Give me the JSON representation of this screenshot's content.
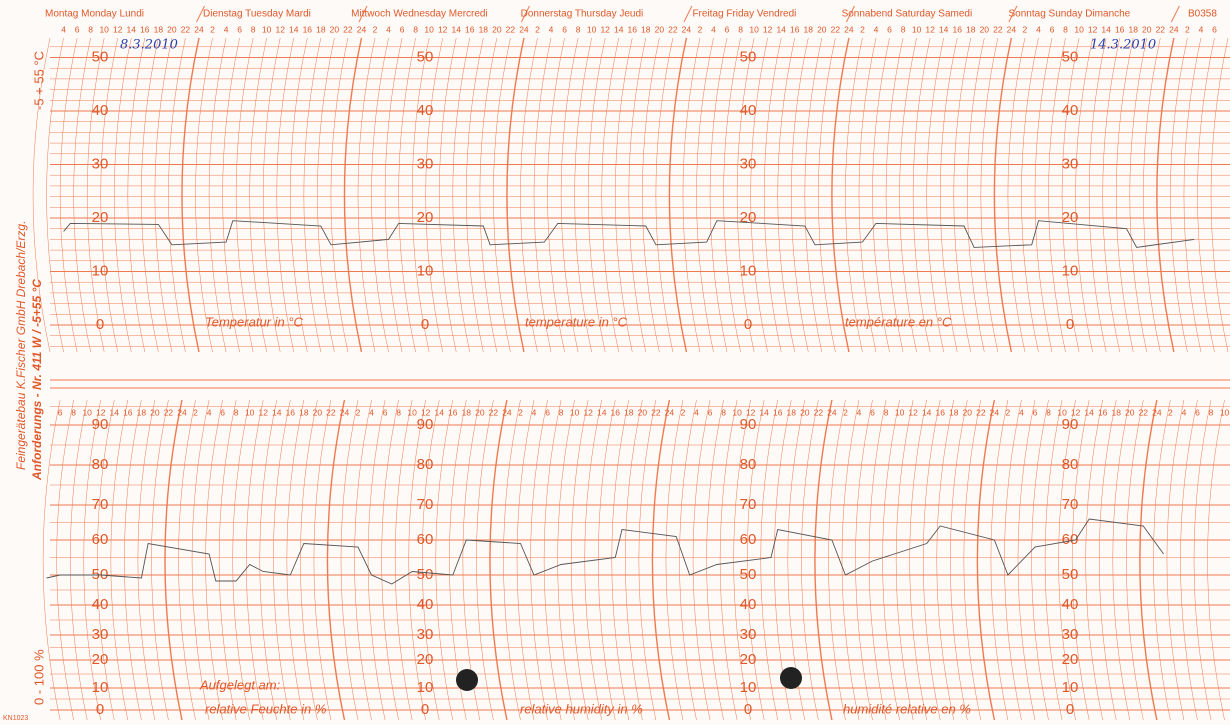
{
  "header": {
    "days": [
      "Montag  Monday  Lundi",
      "Dienstag  Tuesday  Mardi",
      "Mittwoch Wednesday Mercredi",
      "Donnerstag Thursday Jeudi",
      "Freitag  Friday  Vendredi",
      "Sonnabend Saturday Samedi",
      "Sonntag Sunday Dimanche"
    ],
    "code": "B0358",
    "hours": [
      2,
      4,
      6,
      8,
      10,
      12,
      14,
      16,
      18,
      20,
      22,
      24
    ]
  },
  "dates": [
    "8.3.2010",
    "14.3.2010"
  ],
  "side": {
    "maker": "Feingerätebau K.Fischer GmbH Drebach/Erzg.",
    "order": "Anforderungs - Nr. 411 W / -5+55 °C",
    "temp_range": "-5 + 55 °C",
    "hum_range": "0 - 100 %"
  },
  "temperature": {
    "scale": [
      0,
      10,
      20,
      30,
      40,
      50
    ],
    "labels": [
      "Temperatur in °C",
      "temperature in °C",
      "température en °C"
    ],
    "trace": {
      "hours": [
        4,
        5,
        18,
        20,
        28,
        29,
        42,
        43.5,
        52,
        53.5,
        66,
        67,
        75,
        77,
        90,
        91.5,
        99,
        100.5,
        113.5,
        115,
        122,
        124,
        137,
        138.5,
        147,
        148,
        161,
        162.5,
        171
      ],
      "values": [
        17.5,
        19,
        18.8,
        15,
        15.5,
        19.5,
        18.5,
        15,
        16,
        19,
        18.5,
        15,
        15.5,
        19,
        18.5,
        15,
        15.5,
        19.5,
        18.5,
        15,
        15.5,
        19,
        18.5,
        14.5,
        15,
        19.5,
        18,
        14.5,
        16
      ]
    }
  },
  "humidity": {
    "scale": [
      0,
      10,
      20,
      30,
      40,
      50,
      60,
      70,
      80,
      90
    ],
    "labels": [
      "Aufgelegt am:",
      "relative Feuchte in %",
      "relative humidity in %",
      "humidité relative en %"
    ],
    "trace": {
      "hours": [
        4,
        6,
        12,
        18,
        19,
        28,
        29,
        32,
        34,
        36,
        40,
        42,
        50,
        52,
        55,
        58,
        64,
        66,
        74,
        76,
        80,
        88,
        89,
        97,
        99,
        103,
        111,
        112,
        120,
        122,
        126,
        134,
        136,
        144,
        146,
        150,
        156,
        158,
        166,
        169
      ],
      "values": [
        49,
        50,
        50,
        49,
        59,
        56,
        48,
        48,
        53,
        51,
        50,
        59,
        58,
        50,
        47,
        51,
        50,
        60,
        59,
        50,
        53,
        55,
        63,
        61,
        50,
        53,
        55,
        63,
        60,
        50,
        54,
        59,
        64,
        60,
        50,
        58,
        60,
        66,
        64,
        56
      ]
    }
  },
  "footer_code": "KN1023"
}
